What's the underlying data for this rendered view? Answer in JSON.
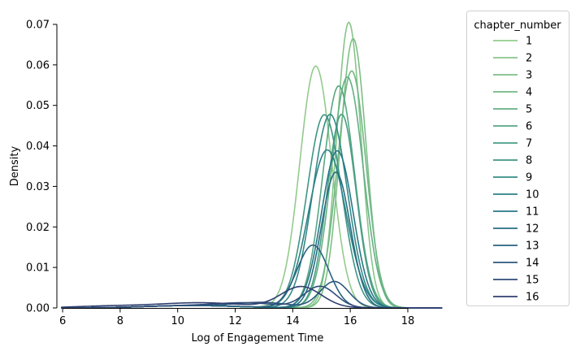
{
  "chart_data": {
    "type": "line",
    "xlabel": "Log of Engagement Time",
    "ylabel": "Density",
    "xlim": [
      5.8,
      19.3
    ],
    "ylim": [
      0,
      0.07
    ],
    "x_ticks": [
      "6",
      "8",
      "10",
      "12",
      "14",
      "16",
      "18"
    ],
    "y_ticks": [
      "0.00",
      "0.01",
      "0.02",
      "0.03",
      "0.04",
      "0.05",
      "0.06",
      "0.07"
    ],
    "grid": false,
    "legend": {
      "title": "chapter_number",
      "placement": "outside-right"
    },
    "series": [
      {
        "name": "1",
        "color": "#93cb8d",
        "peaks": [
          {
            "x": 14.8,
            "sd": 0.55,
            "h": 0.0597
          }
        ]
      },
      {
        "name": "2",
        "color": "#88c58a",
        "peaks": [
          {
            "x": 15.95,
            "sd": 0.42,
            "h": 0.0705
          }
        ]
      },
      {
        "name": "3",
        "color": "#7dbf87",
        "peaks": [
          {
            "x": 16.1,
            "sd": 0.45,
            "h": 0.0665
          }
        ]
      },
      {
        "name": "4",
        "color": "#72b885",
        "peaks": [
          {
            "x": 16.05,
            "sd": 0.5,
            "h": 0.0585
          }
        ]
      },
      {
        "name": "5",
        "color": "#63b084",
        "peaks": [
          {
            "x": 15.9,
            "sd": 0.55,
            "h": 0.057
          }
        ]
      },
      {
        "name": "6",
        "color": "#56a784",
        "peaks": [
          {
            "x": 15.6,
            "sd": 0.55,
            "h": 0.0548
          }
        ]
      },
      {
        "name": "7",
        "color": "#4a9e84",
        "peaks": [
          {
            "x": 15.7,
            "sd": 0.5,
            "h": 0.0478
          }
        ]
      },
      {
        "name": "8",
        "color": "#3f9585",
        "peaks": [
          {
            "x": 15.1,
            "sd": 0.6,
            "h": 0.0477
          }
        ]
      },
      {
        "name": "9",
        "color": "#358b86",
        "peaks": [
          {
            "x": 15.3,
            "sd": 0.6,
            "h": 0.0478
          }
        ]
      },
      {
        "name": "10",
        "color": "#2d8186",
        "peaks": [
          {
            "x": 15.2,
            "sd": 0.65,
            "h": 0.039
          }
        ]
      },
      {
        "name": "11",
        "color": "#287785",
        "peaks": [
          {
            "x": 15.55,
            "sd": 0.55,
            "h": 0.0388
          }
        ]
      },
      {
        "name": "12",
        "color": "#276d83",
        "peaks": [
          {
            "x": 15.5,
            "sd": 0.5,
            "h": 0.0335
          }
        ]
      },
      {
        "name": "13",
        "color": "#296381",
        "peaks": [
          {
            "x": 14.7,
            "sd": 0.55,
            "h": 0.0155
          }
        ]
      },
      {
        "name": "14",
        "color": "#2c587e",
        "peaks": [
          {
            "x": 15.45,
            "sd": 0.5,
            "h": 0.0065
          },
          {
            "x": 13.0,
            "sd": 0.9,
            "h": 0.0012
          }
        ]
      },
      {
        "name": "15",
        "color": "#2f4d79",
        "peaks": [
          {
            "x": 14.95,
            "sd": 0.55,
            "h": 0.0053
          },
          {
            "x": 12.5,
            "sd": 1.0,
            "h": 0.001
          }
        ]
      },
      {
        "name": "16",
        "color": "#303f70",
        "peaks": [
          {
            "x": 14.3,
            "sd": 0.7,
            "h": 0.0052
          },
          {
            "x": 11.0,
            "sd": 1.5,
            "h": 0.0007
          },
          {
            "x": 7.5,
            "sd": 1.2,
            "h": 0.0004
          }
        ]
      }
    ],
    "shared_tail": [
      {
        "x": 10.5,
        "sd": 1.6,
        "h": 0.0006
      }
    ]
  }
}
